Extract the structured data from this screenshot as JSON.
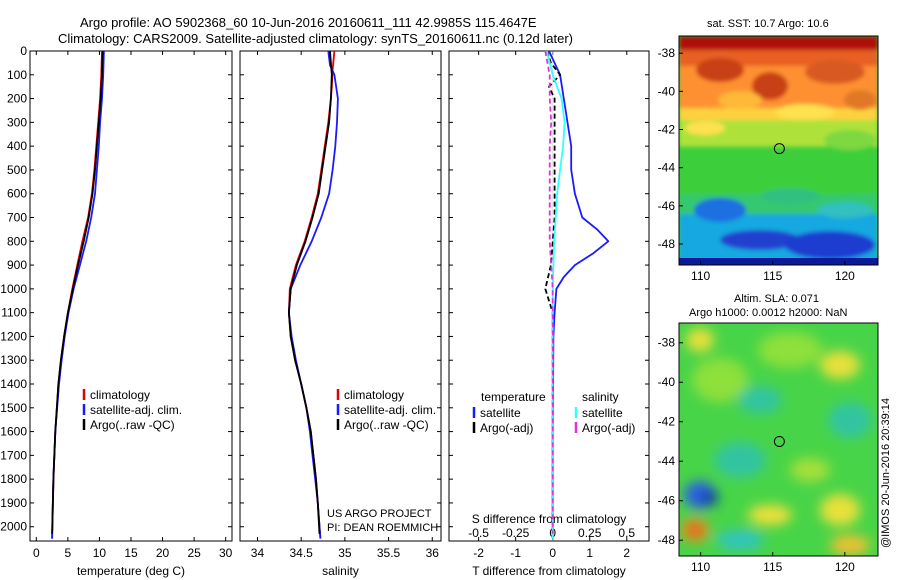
{
  "header": {
    "line1": "Argo profile: AO 5902368_60 10-Jun-2016 20160611_111 42.9985S 115.4647E",
    "line2": "Climatology: CARS2009. Satellite-adjusted climatology: synTS_20160611.nc (0.12d later)"
  },
  "project": {
    "line1": "US ARGO PROJECT",
    "line2": "PI: DEAN ROEMMICH"
  },
  "stamp": "@IMOS 20-Jun-2016 20:39:14",
  "colors": {
    "climatology": "#e00000",
    "satellite": "#1a1aff",
    "argo": "#000000",
    "sal_satellite": "#33ffff",
    "sal_argo": "#e033e0"
  },
  "chart_data": [
    {
      "id": "temperature",
      "type": "line",
      "xlabel": "temperature (deg C)",
      "ylabel": "",
      "xlim": [
        -1,
        31
      ],
      "ylim": [
        2060,
        0
      ],
      "xticks": [
        "0",
        "5",
        "10",
        "15",
        "20",
        "25",
        "30"
      ],
      "xtick_values": [
        0,
        5,
        10,
        15,
        20,
        25,
        30
      ],
      "yticks": [
        "0",
        "100",
        "200",
        "300",
        "400",
        "500",
        "600",
        "700",
        "800",
        "900",
        "1000",
        "1100",
        "1200",
        "1300",
        "1400",
        "1500",
        "1600",
        "1700",
        "1800",
        "1900",
        "2000"
      ],
      "ytick_values": [
        0,
        100,
        200,
        300,
        400,
        500,
        600,
        700,
        800,
        900,
        1000,
        1100,
        1200,
        1300,
        1400,
        1500,
        1600,
        1700,
        1800,
        1900,
        2000
      ],
      "legend": {
        "position": "bottom-right",
        "entries": [
          "climatology",
          "satellite-adj. clim.",
          "Argo(..raw -QC)"
        ]
      },
      "series": [
        {
          "name": "climatology",
          "color_key": "climatology",
          "depth": [
            0,
            100,
            200,
            300,
            400,
            500,
            600,
            700,
            800,
            900,
            1000,
            1100,
            1200,
            1300,
            1400,
            1600,
            1800,
            2050
          ],
          "values": [
            10.4,
            10.3,
            10.1,
            9.8,
            9.5,
            9.2,
            8.8,
            8.2,
            7.3,
            6.5,
            5.7,
            5.0,
            4.4,
            3.9,
            3.5,
            3.0,
            2.7,
            2.5
          ]
        },
        {
          "name": "satellite-adj. clim.",
          "color_key": "satellite",
          "depth": [
            0,
            100,
            200,
            300,
            400,
            500,
            600,
            700,
            800,
            900,
            1000,
            1100,
            1200,
            1300,
            1400,
            1600,
            1800,
            2050
          ],
          "values": [
            10.7,
            10.6,
            10.4,
            10.1,
            9.9,
            9.6,
            9.3,
            8.7,
            7.9,
            6.9,
            5.9,
            5.1,
            4.5,
            4.0,
            3.6,
            3.0,
            2.7,
            2.5
          ]
        },
        {
          "name": "Argo(..raw -QC)",
          "color_key": "argo",
          "depth": [
            0,
            100,
            200,
            300,
            400,
            500,
            600,
            700,
            800,
            900,
            1000,
            1100,
            1200,
            1300,
            1400,
            1600,
            1800,
            2030
          ],
          "values": [
            10.5,
            10.4,
            10.2,
            9.9,
            9.6,
            9.3,
            8.9,
            8.3,
            7.5,
            6.6,
            5.8,
            5.0,
            4.4,
            3.9,
            3.5,
            3.0,
            2.7,
            2.5
          ]
        }
      ]
    },
    {
      "id": "salinity",
      "type": "line",
      "xlabel": "salinity",
      "ylabel": "",
      "xlim": [
        33.8,
        36.1
      ],
      "ylim": [
        2060,
        0
      ],
      "xticks": [
        "34",
        "34.5",
        "35",
        "35.5",
        "36"
      ],
      "xtick_values": [
        34,
        34.5,
        35,
        35.5,
        36
      ],
      "legend": {
        "position": "bottom-right",
        "entries": [
          "climatology",
          "satellite-adj. clim.",
          "Argo(..raw -QC)"
        ]
      },
      "series": [
        {
          "name": "climatology",
          "color_key": "climatology",
          "depth": [
            0,
            80,
            150,
            200,
            300,
            400,
            500,
            600,
            700,
            800,
            900,
            1000,
            1100,
            1200,
            1300,
            1400,
            1500,
            1600,
            1700,
            1800,
            1900,
            2050
          ],
          "values": [
            34.88,
            34.86,
            34.85,
            34.84,
            34.81,
            34.77,
            34.73,
            34.69,
            34.62,
            34.54,
            34.44,
            34.37,
            34.36,
            34.38,
            34.43,
            34.5,
            34.56,
            34.61,
            34.64,
            34.67,
            34.69,
            34.72
          ]
        },
        {
          "name": "satellite-adj. clim.",
          "color_key": "satellite",
          "depth": [
            0,
            60,
            100,
            200,
            300,
            400,
            500,
            600,
            700,
            800,
            900,
            1000,
            1100,
            1200,
            1300,
            1400,
            1500,
            1600,
            1700,
            1800,
            1900,
            2050
          ],
          "values": [
            34.81,
            34.83,
            34.88,
            34.92,
            34.91,
            34.89,
            34.86,
            34.82,
            34.73,
            34.62,
            34.49,
            34.38,
            34.36,
            34.39,
            34.44,
            34.5,
            34.56,
            34.6,
            34.63,
            34.66,
            34.69,
            34.72
          ]
        },
        {
          "name": "Argo(..raw -QC)",
          "color_key": "argo",
          "depth": [
            0,
            100,
            200,
            300,
            400,
            500,
            600,
            700,
            800,
            900,
            1000,
            1100,
            1200,
            1300,
            1400,
            1500,
            1600,
            1700,
            1800,
            1900,
            2030
          ],
          "values": [
            34.83,
            34.85,
            34.84,
            34.82,
            34.78,
            34.74,
            34.7,
            34.63,
            34.55,
            34.45,
            34.38,
            34.36,
            34.38,
            34.43,
            34.5,
            34.56,
            34.61,
            34.64,
            34.67,
            34.69,
            34.71
          ]
        }
      ]
    },
    {
      "id": "differences",
      "type": "line",
      "xlabel": "T difference from climatology",
      "xlabel_top": "S difference from climatology",
      "xlim": [
        -2.8,
        2.6
      ],
      "ylim": [
        2060,
        0
      ],
      "xticks": [
        "-2",
        "-1",
        "0",
        "1",
        "2"
      ],
      "xtick_values": [
        -2,
        -1,
        0,
        1,
        2
      ],
      "sticks": [
        "-0.5",
        "-0.25",
        "0",
        "0.25",
        "0.5"
      ],
      "stick_values": [
        -0.5,
        -0.25,
        0,
        0.25,
        0.5
      ],
      "legend": {
        "position": "bottom",
        "temperature_title": "temperature",
        "salinity_title": "salinity",
        "entries": [
          "satellite",
          "Argo(-adj)",
          "satellite",
          "Argo(-adj)"
        ]
      },
      "series": [
        {
          "name": "temperature satellite",
          "color_key": "satellite",
          "dash": false,
          "depth": [
            0,
            100,
            200,
            300,
            400,
            500,
            600,
            700,
            750,
            800,
            850,
            900,
            950,
            1000,
            1100,
            1200,
            1400,
            1600,
            1800,
            2050
          ],
          "values": [
            -0.1,
            0.2,
            0.3,
            0.4,
            0.5,
            0.5,
            0.6,
            0.8,
            1.2,
            1.5,
            1.1,
            0.6,
            0.3,
            0.1,
            0.05,
            0.02,
            0.01,
            0.0,
            0.0,
            0.0
          ]
        },
        {
          "name": "temperature Argo(-adj)",
          "color_key": "argo",
          "dash": true,
          "depth": [
            0,
            50,
            100,
            150,
            200,
            300,
            500,
            700,
            900,
            1000,
            1050,
            1100,
            1300,
            1600,
            2030
          ],
          "values": [
            -0.15,
            -0.05,
            0.2,
            -0.1,
            0.05,
            0.05,
            0.05,
            0.05,
            -0.05,
            -0.2,
            -0.1,
            0.0,
            0.0,
            0.0,
            0.0
          ]
        },
        {
          "name": "salinity satellite",
          "color_key": "sal_satellite",
          "dash": false,
          "depth": [
            0,
            100,
            200,
            300,
            400,
            500,
            600,
            700,
            800,
            1000,
            1200,
            1400,
            1600,
            2050
          ],
          "values": [
            -0.04,
            0.0,
            0.06,
            0.08,
            0.07,
            0.05,
            0.03,
            0.02,
            0.01,
            0.0,
            0.0,
            0.0,
            0.0,
            0.0
          ]
        },
        {
          "name": "salinity Argo(-adj)",
          "color_key": "sal_argo",
          "dash": true,
          "depth": [
            0,
            100,
            200,
            300,
            400,
            600,
            800,
            1000,
            1200,
            1400,
            1600,
            2030
          ],
          "values": [
            -0.05,
            -0.02,
            -0.02,
            -0.01,
            -0.02,
            -0.02,
            -0.02,
            0.0,
            0.0,
            0.0,
            0.0,
            0.0
          ]
        }
      ]
    },
    {
      "id": "sst_map",
      "type": "heatmap",
      "title": "sat. SST: 10.7 Argo: 10.6",
      "xticks": [
        "110",
        "115",
        "120"
      ],
      "xtick_values": [
        110,
        115,
        120
      ],
      "yticks": [
        "-38",
        "-40",
        "-42",
        "-44",
        "-46",
        "-48"
      ],
      "ytick_values": [
        -38,
        -40,
        -42,
        -44,
        -46,
        -48
      ],
      "xlim": [
        108.5,
        122.3
      ],
      "ylim": [
        -49.1,
        -37.1
      ],
      "marker": {
        "lon": 115.46,
        "lat": -43.0
      }
    },
    {
      "id": "sla_map",
      "type": "heatmap",
      "title_line1": "Altim. SLA: 0.071",
      "title_line2": "Argo h1000: 0.0012 h2000: NaN",
      "xticks": [
        "110",
        "115",
        "120"
      ],
      "xtick_values": [
        110,
        115,
        120
      ],
      "yticks": [
        "-38",
        "-40",
        "-42",
        "-44",
        "-46",
        "-48"
      ],
      "ytick_values": [
        -38,
        -40,
        -42,
        -44,
        -46,
        -48
      ],
      "xlim": [
        108.5,
        122.3
      ],
      "ylim": [
        -48.8,
        -37.0
      ],
      "marker": {
        "lon": 115.46,
        "lat": -43.0
      }
    }
  ]
}
